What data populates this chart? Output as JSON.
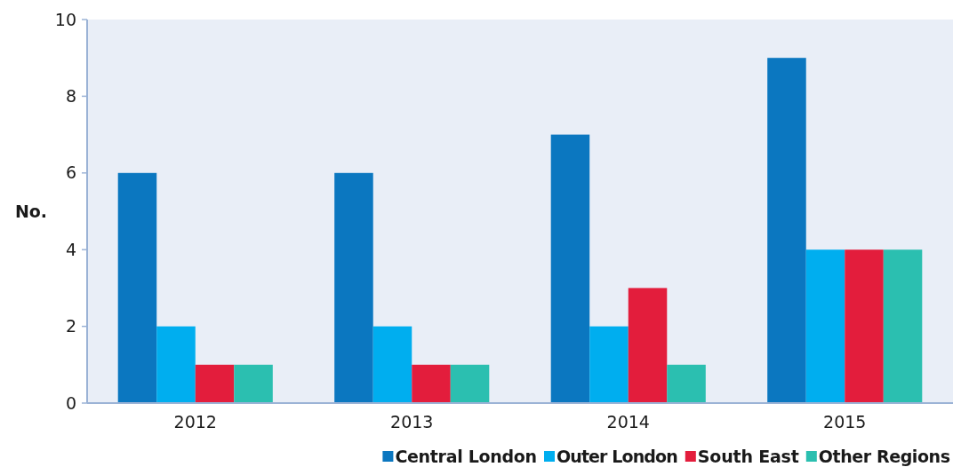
{
  "chart_data": {
    "type": "bar",
    "ylabel": "No.",
    "categories": [
      "2012",
      "2013",
      "2014",
      "2015"
    ],
    "series": [
      {
        "name": "Central London",
        "color": "#0b77c0",
        "values": [
          6,
          6,
          7,
          9
        ]
      },
      {
        "name": "Outer London",
        "color": "#00aeef",
        "values": [
          2,
          2,
          2,
          4
        ]
      },
      {
        "name": "South East",
        "color": "#e31d3c",
        "values": [
          1,
          1,
          3,
          4
        ]
      },
      {
        "name": "Other Regions",
        "color": "#2bbfb0",
        "values": [
          1,
          1,
          1,
          4
        ]
      }
    ],
    "ylim": [
      0,
      10
    ],
    "yticks": [
      0,
      2,
      4,
      6,
      8,
      10
    ],
    "legend": "bottom"
  }
}
